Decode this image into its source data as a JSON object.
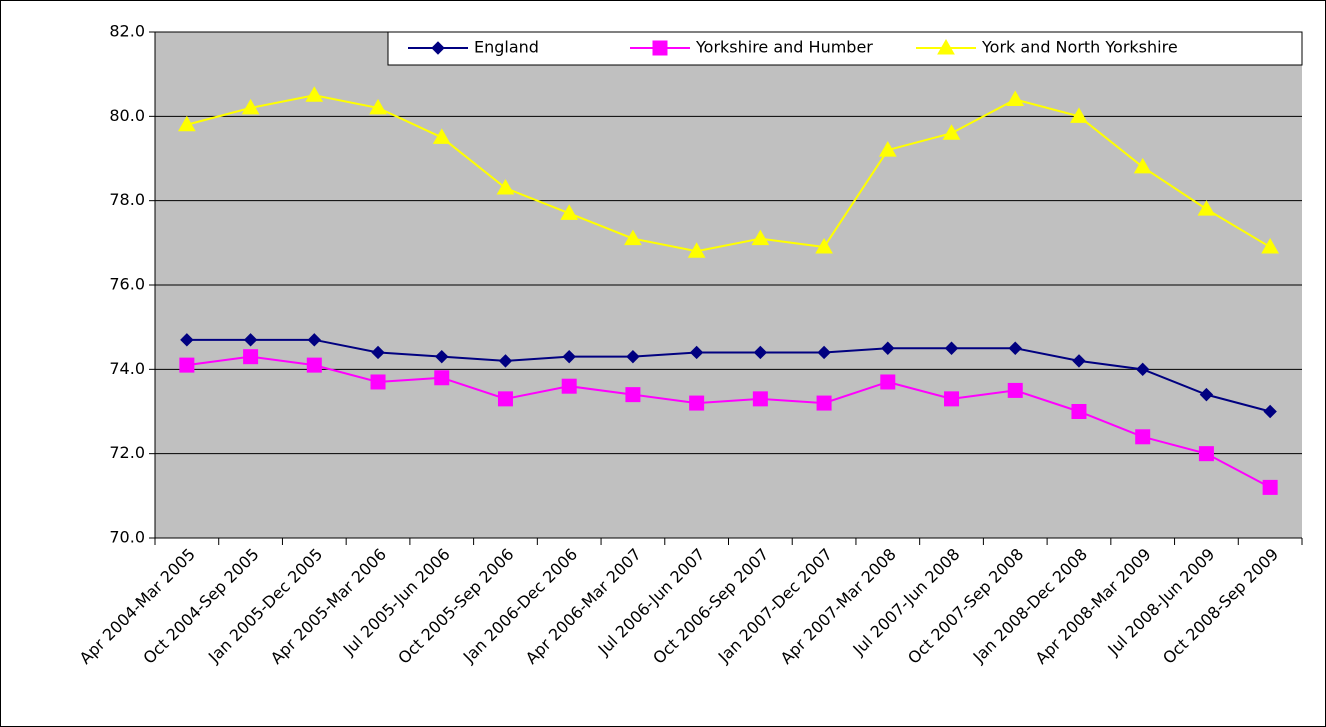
{
  "chart_data": {
    "type": "line",
    "categories": [
      "Apr 2004-Mar 2005",
      "Oct 2004-Sep 2005",
      "Jan 2005-Dec 2005",
      "Apr 2005-Mar 2006",
      "Jul 2005-Jun 2006",
      "Oct 2005-Sep 2006",
      "Jan 2006-Dec 2006",
      "Apr 2006-Mar 2007",
      "Jul 2006-Jun 2007",
      "Oct 2006-Sep 2007",
      "Jan 2007-Dec 2007",
      "Apr 2007-Mar 2008",
      "Jul 2007-Jun 2008",
      "Oct 2007-Sep 2008",
      "Jan 2008-Dec 2008",
      "Apr 2008-Mar 2009",
      "Jul 2008-Jun 2009",
      "Oct 2008-Sep 2009"
    ],
    "series": [
      {
        "name": "England",
        "color": "#000080",
        "marker": "diamond",
        "values": [
          74.7,
          74.7,
          74.7,
          74.4,
          74.3,
          74.2,
          74.3,
          74.3,
          74.4,
          74.4,
          74.4,
          74.5,
          74.5,
          74.5,
          74.2,
          74.0,
          73.4,
          73.0
        ]
      },
      {
        "name": "Yorkshire and Humber",
        "color": "#ff00ff",
        "marker": "square",
        "values": [
          74.1,
          74.3,
          74.1,
          73.7,
          73.8,
          73.3,
          73.6,
          73.4,
          73.2,
          73.3,
          73.2,
          73.7,
          73.3,
          73.5,
          73.0,
          72.4,
          72.0,
          71.2
        ]
      },
      {
        "name": "York and North Yorkshire",
        "color": "#ffff00",
        "marker": "triangle",
        "values": [
          79.8,
          80.2,
          80.5,
          80.2,
          79.5,
          78.3,
          77.7,
          77.1,
          76.8,
          77.1,
          76.9,
          79.2,
          79.6,
          80.4,
          80.0,
          78.8,
          77.8,
          76.9
        ]
      }
    ],
    "ylim": [
      70,
      82
    ],
    "yticks": [
      {
        "value": 70,
        "label": "70.0"
      },
      {
        "value": 72,
        "label": "72.0"
      },
      {
        "value": 74,
        "label": "74.0"
      },
      {
        "value": 76,
        "label": "76.0"
      },
      {
        "value": 78,
        "label": "78.0"
      },
      {
        "value": 80,
        "label": "80.0"
      },
      {
        "value": 82,
        "label": "82.0"
      }
    ],
    "grid": true,
    "legend": "top-right",
    "plot_background": "#c0c0c0"
  }
}
